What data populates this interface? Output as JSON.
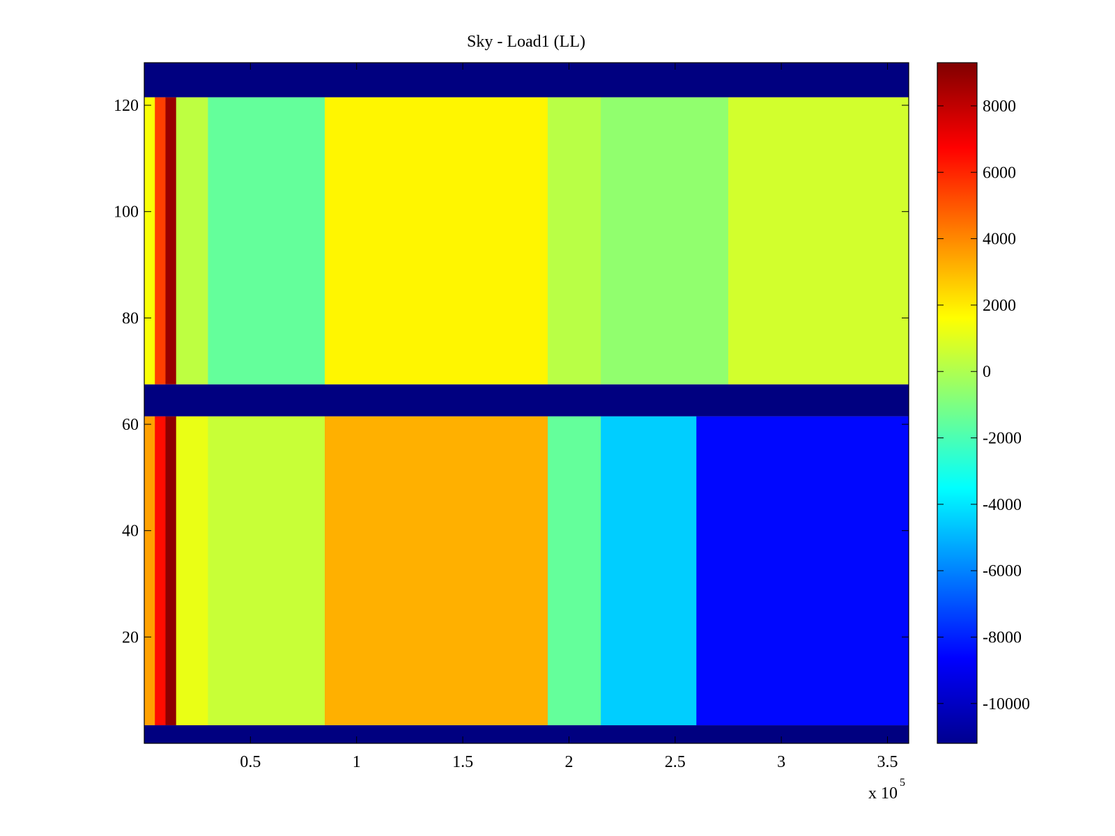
{
  "chart_data": {
    "type": "heatmap",
    "title": "Sky - Load1 (LL)",
    "xlabel": "",
    "ylabel": "",
    "x_multiplier_label": "x 10",
    "x_multiplier_exponent": "5",
    "xlim": [
      0,
      3.6
    ],
    "ylim": [
      0,
      128
    ],
    "x_ticks": [
      0.5,
      1,
      1.5,
      2,
      2.5,
      3,
      3.5
    ],
    "x_tick_labels": [
      "0.5",
      "1",
      "1.5",
      "2",
      "2.5",
      "3",
      "3.5"
    ],
    "y_ticks": [
      20,
      40,
      60,
      80,
      100,
      120
    ],
    "y_tick_labels": [
      "20",
      "40",
      "60",
      "80",
      "100",
      "120"
    ],
    "colormap": "jet",
    "clim": [
      -11200,
      9300
    ],
    "colorbar_ticks": [
      8000,
      6000,
      4000,
      2000,
      0,
      -2000,
      -4000,
      -6000,
      -8000,
      -10000
    ],
    "colorbar_tick_labels": [
      "8000",
      "6000",
      "4000",
      "2000",
      "0",
      "-2000",
      "-4000",
      "-6000",
      "-8000",
      "-10000"
    ],
    "masked_rows": [
      [
        0,
        3.4
      ],
      [
        61.5,
        67.5
      ],
      [
        121.5,
        128
      ]
    ],
    "masked_value": -11200,
    "x_segments_upper": [
      {
        "x": [
          0,
          0.05
        ],
        "value": 1500
      },
      {
        "x": [
          0.05,
          0.1
        ],
        "value": 5500
      },
      {
        "x": [
          0.1,
          0.15
        ],
        "value": 8800
      },
      {
        "x": [
          0.15,
          0.3
        ],
        "value": 300
      },
      {
        "x": [
          0.3,
          0.85
        ],
        "value": -1500
      },
      {
        "x": [
          0.85,
          1.9
        ],
        "value": 1800
      },
      {
        "x": [
          1.9,
          2.15
        ],
        "value": 200
      },
      {
        "x": [
          2.15,
          2.75
        ],
        "value": -600
      },
      {
        "x": [
          2.75,
          3.6
        ],
        "value": 700
      }
    ],
    "x_segments_lower": [
      {
        "x": [
          0,
          0.05
        ],
        "value": 3500
      },
      {
        "x": [
          0.05,
          0.1
        ],
        "value": 6500
      },
      {
        "x": [
          0.1,
          0.15
        ],
        "value": 9000
      },
      {
        "x": [
          0.15,
          0.3
        ],
        "value": 1200
      },
      {
        "x": [
          0.3,
          0.85
        ],
        "value": 500
      },
      {
        "x": [
          0.85,
          1.9
        ],
        "value": 3200
      },
      {
        "x": [
          1.9,
          2.15
        ],
        "value": -1500
      },
      {
        "x": [
          2.15,
          2.6
        ],
        "value": -4500
      },
      {
        "x": [
          2.6,
          3.6
        ],
        "value": -8500
      }
    ]
  }
}
